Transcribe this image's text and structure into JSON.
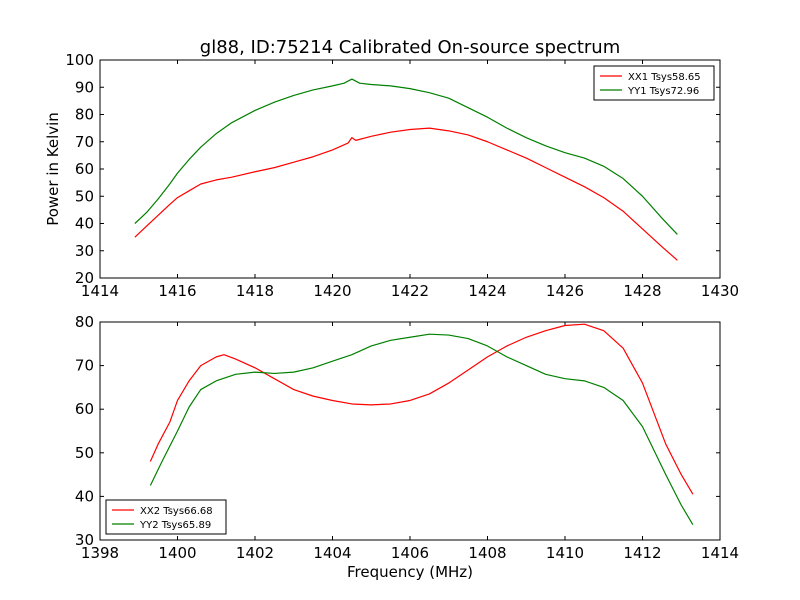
{
  "chart_data": [
    {
      "type": "line",
      "title": "gl88, ID:75214 Calibrated On-source spectrum",
      "xlabel": "",
      "ylabel": "Power in Kelvin",
      "xlim": [
        1414,
        1430
      ],
      "ylim": [
        20,
        100
      ],
      "xticks": [
        1414,
        1416,
        1418,
        1420,
        1422,
        1424,
        1426,
        1428,
        1430
      ],
      "yticks": [
        20,
        30,
        40,
        50,
        60,
        70,
        80,
        90,
        100
      ],
      "legend": "top-right",
      "series": [
        {
          "name": "XX1 Tsys58.65",
          "color": "#ff0000",
          "x": [
            1414.9,
            1415.2,
            1415.5,
            1415.8,
            1416.0,
            1416.3,
            1416.6,
            1417.0,
            1417.4,
            1418.0,
            1418.5,
            1419.0,
            1419.5,
            1420.0,
            1420.4,
            1420.5,
            1420.6,
            1421.0,
            1421.5,
            1422.0,
            1422.5,
            1423.0,
            1423.5,
            1424.0,
            1424.5,
            1425.0,
            1425.5,
            1426.0,
            1426.5,
            1427.0,
            1427.5,
            1428.0,
            1428.5,
            1428.9
          ],
          "y": [
            35,
            39,
            43,
            47,
            49.5,
            52,
            54.5,
            56,
            57,
            59,
            60.5,
            62.5,
            64.5,
            67,
            69.5,
            71.5,
            70.5,
            72,
            73.5,
            74.5,
            75,
            74,
            72.5,
            70,
            67,
            64,
            60.5,
            57,
            53.5,
            49.5,
            44.5,
            38,
            31.5,
            26.5
          ]
        },
        {
          "name": "YY1 Tsys72.96",
          "color": "#008000",
          "x": [
            1414.9,
            1415.2,
            1415.5,
            1415.8,
            1416.0,
            1416.3,
            1416.6,
            1417.0,
            1417.4,
            1418.0,
            1418.5,
            1419.0,
            1419.5,
            1420.0,
            1420.3,
            1420.5,
            1420.7,
            1421.0,
            1421.5,
            1422.0,
            1422.5,
            1423.0,
            1423.5,
            1424.0,
            1424.5,
            1425.0,
            1425.5,
            1426.0,
            1426.5,
            1427.0,
            1427.5,
            1428.0,
            1428.5,
            1428.9
          ],
          "y": [
            40,
            44,
            49,
            54.5,
            58.5,
            63.5,
            68,
            73,
            77,
            81.5,
            84.5,
            87,
            89,
            90.5,
            91.5,
            93,
            91.5,
            91,
            90.5,
            89.5,
            88,
            86,
            82.5,
            79,
            75,
            71.5,
            68.5,
            66,
            64,
            61,
            56.5,
            50,
            42,
            36
          ]
        }
      ]
    },
    {
      "type": "line",
      "title": "",
      "xlabel": "Frequency (MHz)",
      "ylabel": "",
      "xlim": [
        1398,
        1414
      ],
      "ylim": [
        30,
        80
      ],
      "xticks": [
        1398,
        1400,
        1402,
        1404,
        1406,
        1408,
        1410,
        1412,
        1414
      ],
      "yticks": [
        30,
        40,
        50,
        60,
        70,
        80
      ],
      "legend": "bottom-left",
      "series": [
        {
          "name": "XX2 Tsys66.68",
          "color": "#ff0000",
          "x": [
            1399.3,
            1399.5,
            1399.8,
            1400.0,
            1400.3,
            1400.6,
            1401.0,
            1401.2,
            1401.5,
            1402.0,
            1402.5,
            1403.0,
            1403.5,
            1404.0,
            1404.5,
            1405.0,
            1405.5,
            1406.0,
            1406.5,
            1407.0,
            1407.5,
            1408.0,
            1408.5,
            1409.0,
            1409.5,
            1410.0,
            1410.5,
            1411.0,
            1411.5,
            1412.0,
            1412.3,
            1412.6,
            1413.0,
            1413.3
          ],
          "y": [
            48,
            52,
            57,
            62,
            66.5,
            70,
            72,
            72.5,
            71.5,
            69.5,
            67,
            64.5,
            63,
            62,
            61.2,
            61,
            61.2,
            62,
            63.5,
            66,
            69,
            72,
            74.5,
            76.5,
            78,
            79.2,
            79.5,
            78,
            74,
            66,
            59,
            52,
            45,
            40.5
          ]
        },
        {
          "name": "YY2 Tsys65.89",
          "color": "#008000",
          "x": [
            1399.3,
            1399.6,
            1400.0,
            1400.3,
            1400.6,
            1401.0,
            1401.5,
            1402.0,
            1402.5,
            1403.0,
            1403.5,
            1404.0,
            1404.5,
            1405.0,
            1405.5,
            1406.0,
            1406.5,
            1407.0,
            1407.5,
            1408.0,
            1408.5,
            1409.0,
            1409.5,
            1410.0,
            1410.5,
            1411.0,
            1411.5,
            1412.0,
            1412.3,
            1412.6,
            1413.0,
            1413.3
          ],
          "y": [
            42.5,
            48,
            55,
            60.5,
            64.5,
            66.5,
            68,
            68.5,
            68.2,
            68.5,
            69.5,
            71,
            72.5,
            74.5,
            75.8,
            76.5,
            77.2,
            77,
            76.2,
            74.5,
            72,
            70,
            68,
            67,
            66.5,
            65,
            62,
            56,
            50.5,
            45,
            38,
            33.5
          ]
        }
      ]
    }
  ]
}
